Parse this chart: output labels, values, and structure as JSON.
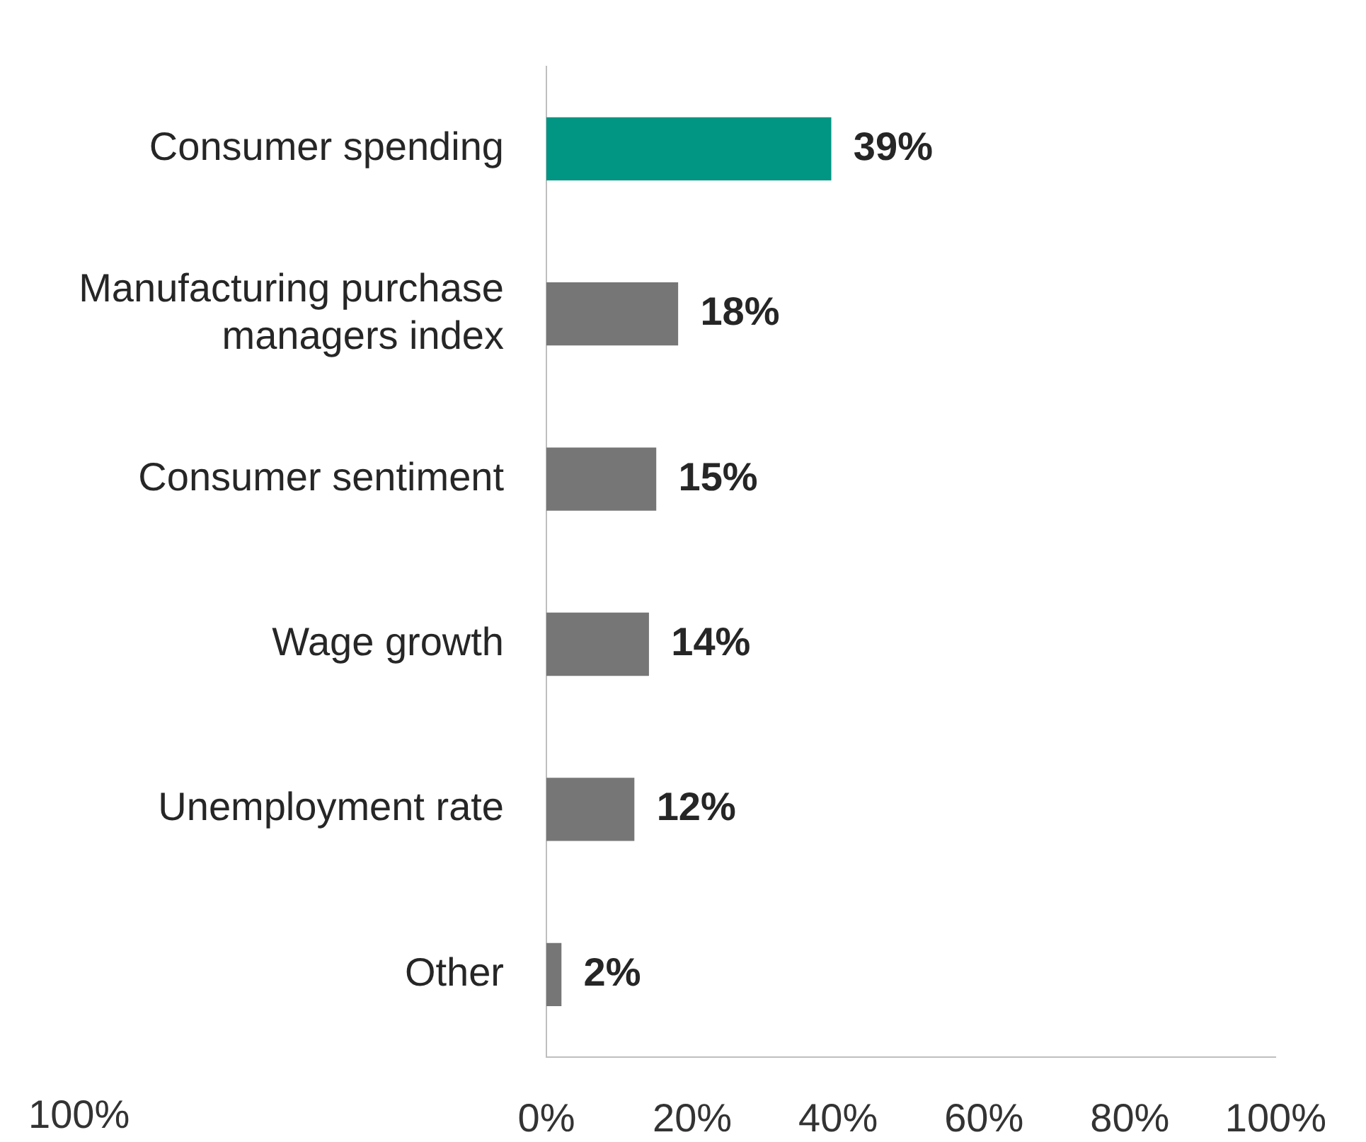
{
  "chart_data": {
    "type": "bar",
    "orientation": "horizontal",
    "categories": [
      "Consumer spending",
      "Manufacturing purchase managers index",
      "Consumer sentiment",
      "Wage growth",
      "Unemployment rate",
      "Other"
    ],
    "values": [
      39,
      18,
      15,
      14,
      12,
      2
    ],
    "colors": [
      "#009683",
      "#767676",
      "#767676",
      "#767676",
      "#767676",
      "#767676"
    ],
    "xlim": [
      0,
      100
    ],
    "xticks": [
      {
        "value": 0,
        "label": "0%"
      },
      {
        "value": 20,
        "label": "20%"
      },
      {
        "value": 40,
        "label": "40%"
      },
      {
        "value": 60,
        "label": "60%"
      },
      {
        "value": 80,
        "label": "80%"
      },
      {
        "value": 100,
        "label": "100%"
      }
    ],
    "value_labels": [
      "39%",
      "18%",
      "15%",
      "14%",
      "12%",
      "2%"
    ],
    "grid": false,
    "legend": false,
    "annotations": [
      "100%"
    ]
  }
}
